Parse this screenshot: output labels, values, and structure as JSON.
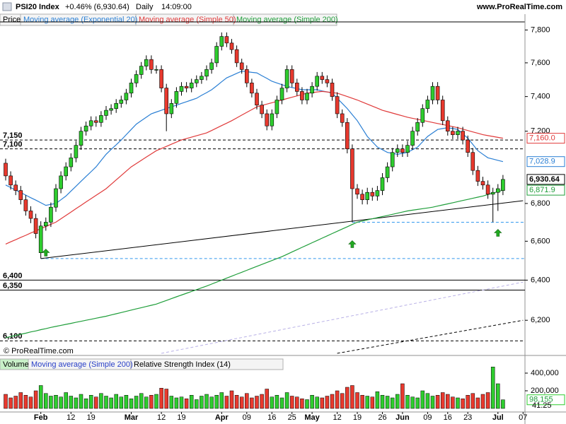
{
  "header": {
    "symbol": "PSI20 Index",
    "change": "+0.46% (6,930.64)",
    "period": "Daily",
    "time": "14:09:00",
    "site": "www.ProRealTime.com"
  },
  "chart_data": [
    {
      "type": "candlestick",
      "legend_title": "Price",
      "copyright": "© ProRealTime.com",
      "categories": [
        null,
        null,
        null,
        null,
        null,
        null,
        null,
        "Feb",
        null,
        null,
        null,
        null,
        null,
        "12",
        null,
        null,
        null,
        "19",
        null,
        null,
        null,
        null,
        null,
        null,
        null,
        "Mar",
        null,
        null,
        null,
        null,
        null,
        "12",
        null,
        null,
        null,
        "19",
        null,
        null,
        null,
        null,
        null,
        null,
        null,
        "Apr",
        null,
        null,
        null,
        null,
        "09",
        null,
        null,
        null,
        null,
        "16",
        null,
        null,
        null,
        "25",
        null,
        null,
        null,
        "May",
        null,
        null,
        null,
        null,
        "12",
        null,
        null,
        null,
        "19",
        null,
        null,
        null,
        null,
        "26",
        null,
        null,
        null,
        "Jun",
        null,
        null,
        null,
        null,
        "09",
        null,
        null,
        null,
        "16",
        null,
        null,
        null,
        "23",
        null,
        null,
        null,
        null,
        null,
        "Jul",
        null,
        null,
        null,
        null,
        "07"
      ],
      "open": [
        7020,
        6950,
        6900,
        6870,
        6820,
        6760,
        6720,
        6540,
        6680,
        6700,
        6780,
        6880,
        6950,
        7000,
        7050,
        7120,
        7200,
        7230,
        7260,
        7250,
        7290,
        7320,
        7330,
        7360,
        7380,
        7420,
        7480,
        7530,
        7580,
        7620,
        7560,
        7560,
        7450,
        7300,
        7360,
        7430,
        7460,
        7450,
        7480,
        7500,
        7520,
        7560,
        7600,
        7700,
        7760,
        7720,
        7680,
        7600,
        7560,
        7480,
        7420,
        7350,
        7300,
        7230,
        7300,
        7380,
        7450,
        7560,
        7480,
        7430,
        7380,
        7420,
        7460,
        7520,
        7500,
        7480,
        7400,
        7300,
        7250,
        7100,
        6880,
        6850,
        6820,
        6860,
        6840,
        6870,
        6940,
        7000,
        7080,
        7100,
        7080,
        7120,
        7200,
        7250,
        7330,
        7380,
        7460,
        7380,
        7260,
        7200,
        7180,
        7200,
        7150,
        7080,
        6980,
        6920,
        6900,
        6850,
        6860,
        6870,
        null,
        null,
        null,
        null
      ],
      "high": [
        7045,
        6975,
        6925,
        6895,
        6845,
        6785,
        6745,
        6705,
        6725,
        6805,
        6905,
        6975,
        7025,
        7075,
        7145,
        7225,
        7255,
        7285,
        7285,
        7315,
        7345,
        7355,
        7385,
        7405,
        7445,
        7505,
        7555,
        7605,
        7645,
        7645,
        7585,
        7585,
        7475,
        7385,
        7455,
        7485,
        7485,
        7505,
        7525,
        7545,
        7585,
        7625,
        7725,
        7785,
        7785,
        7745,
        7705,
        7625,
        7585,
        7505,
        7445,
        7375,
        7325,
        7325,
        7405,
        7475,
        7585,
        7585,
        7505,
        7455,
        7445,
        7485,
        7545,
        7545,
        7525,
        7505,
        7425,
        7325,
        7275,
        7125,
        6905,
        6875,
        6885,
        6885,
        6895,
        6965,
        7025,
        7105,
        7125,
        7125,
        7145,
        7225,
        7275,
        7355,
        7405,
        7485,
        7485,
        7405,
        7285,
        7225,
        7225,
        7225,
        7175,
        7105,
        7005,
        6945,
        6925,
        6885,
        6905,
        6955,
        null,
        null,
        null,
        null
      ],
      "low": [
        6925,
        6875,
        6845,
        6795,
        6735,
        6695,
        6615,
        6510,
        6655,
        6675,
        6755,
        6855,
        6925,
        6975,
        7025,
        7095,
        7175,
        7205,
        7225,
        7225,
        7265,
        7295,
        7305,
        7335,
        7355,
        7395,
        7455,
        7505,
        7555,
        7535,
        7535,
        7425,
        7200,
        7275,
        7335,
        7405,
        7425,
        7425,
        7455,
        7475,
        7495,
        7535,
        7575,
        7675,
        7695,
        7655,
        7575,
        7535,
        7455,
        7395,
        7325,
        7275,
        7205,
        7205,
        7275,
        7355,
        7425,
        7455,
        7405,
        7355,
        7355,
        7395,
        7435,
        7475,
        7455,
        7375,
        7275,
        7225,
        7075,
        6700,
        6825,
        6795,
        6795,
        6815,
        6815,
        6845,
        6915,
        6975,
        7055,
        7055,
        7055,
        7095,
        7175,
        7225,
        7305,
        7355,
        7355,
        7235,
        7175,
        7155,
        7155,
        7125,
        7055,
        6955,
        6895,
        6875,
        6825,
        6700,
        6760,
        6845,
        null,
        null,
        null,
        null
      ],
      "close": [
        6950,
        6900,
        6870,
        6820,
        6760,
        6720,
        6640,
        6680,
        6700,
        6780,
        6880,
        6950,
        7000,
        7050,
        7120,
        7200,
        7230,
        7260,
        7250,
        7290,
        7320,
        7330,
        7360,
        7380,
        7420,
        7480,
        7530,
        7580,
        7620,
        7560,
        7560,
        7450,
        7300,
        7360,
        7430,
        7460,
        7450,
        7480,
        7500,
        7520,
        7560,
        7600,
        7700,
        7760,
        7720,
        7680,
        7600,
        7560,
        7480,
        7420,
        7350,
        7300,
        7230,
        7300,
        7380,
        7450,
        7560,
        7480,
        7430,
        7380,
        7420,
        7460,
        7520,
        7500,
        7480,
        7400,
        7300,
        7250,
        7100,
        6880,
        6850,
        6820,
        6860,
        6840,
        6870,
        6940,
        7000,
        7080,
        7100,
        7080,
        7120,
        7200,
        7250,
        7330,
        7380,
        7460,
        7380,
        7260,
        7200,
        7180,
        7200,
        7150,
        7080,
        6980,
        6920,
        6900,
        6850,
        6860,
        6880,
        6930.64,
        null,
        null,
        null,
        null
      ],
      "close_label": "6,930.64",
      "up_color": "#2ecc2e",
      "down_color": "#e8392e",
      "series": [
        {
          "name": "Moving average (Exponential 20)",
          "color": "#2a7fd4",
          "last_label": "7,028.9",
          "values": [
            6900,
            6886,
            6872,
            6859,
            6845,
            6831,
            6818,
            6804,
            6790,
            6795,
            6800,
            6820,
            6840,
            6867,
            6893,
            6920,
            6947,
            6973,
            7000,
            7035,
            7070,
            7097,
            7123,
            7150,
            7180,
            7210,
            7240,
            7260,
            7280,
            7300,
            7310,
            7320,
            7330,
            7340,
            7350,
            7360,
            7370,
            7380,
            7390,
            7407,
            7423,
            7440,
            7463,
            7487,
            7510,
            7523,
            7537,
            7550,
            7547,
            7543,
            7540,
            7523,
            7507,
            7490,
            7480,
            7470,
            7460,
            7453,
            7447,
            7440,
            7440,
            7440,
            7440,
            7433,
            7427,
            7420,
            7390,
            7360,
            7330,
            7295,
            7260,
            7215,
            7170,
            7140,
            7110,
            7095,
            7080,
            7075,
            7070,
            7075,
            7080,
            7095,
            7110,
            7140,
            7170,
            7190,
            7210,
            7215,
            7220,
            7215,
            7210,
            7185,
            7160,
            7125,
            7090,
            7070,
            7050,
            7043,
            7036,
            7028.9,
            null,
            null,
            null,
            null
          ]
        },
        {
          "name": "Moving average (Simple 50)",
          "color": "#e03a3a",
          "last_label": "7,160.0",
          "values": [
            6585,
            6597,
            6608,
            6620,
            6631,
            6643,
            6654,
            6666,
            6677,
            6689,
            6700,
            6718,
            6736,
            6754,
            6772,
            6790,
            6808,
            6826,
            6844,
            6862,
            6880,
            6904,
            6928,
            6952,
            6976,
            7000,
            7018,
            7036,
            7054,
            7072,
            7090,
            7102,
            7114,
            7126,
            7138,
            7150,
            7158,
            7166,
            7174,
            7182,
            7190,
            7204,
            7218,
            7232,
            7246,
            7260,
            7276,
            7292,
            7308,
            7324,
            7340,
            7348,
            7356,
            7364,
            7372,
            7380,
            7388,
            7396,
            7404,
            7412,
            7420,
            7423,
            7427,
            7430,
            7427,
            7423,
            7420,
            7410,
            7400,
            7390,
            7380,
            7368,
            7356,
            7344,
            7332,
            7320,
            7312,
            7304,
            7296,
            7288,
            7280,
            7274,
            7268,
            7262,
            7256,
            7250,
            7244,
            7238,
            7232,
            7226,
            7220,
            7212,
            7204,
            7196,
            7188,
            7180,
            7175,
            7170,
            7165,
            7160,
            null,
            null,
            null,
            null
          ]
        },
        {
          "name": "Moving average (Simple 200)",
          "color": "#1f9e3a",
          "last_label": "6,871.9",
          "values": [
            6115,
            6121,
            6126,
            6132,
            6137,
            6143,
            6148,
            6154,
            6159,
            6165,
            6170,
            6175,
            6180,
            6185,
            6190,
            6195,
            6200,
            6205,
            6210,
            6215,
            6220,
            6226,
            6232,
            6238,
            6244,
            6250,
            6256,
            6262,
            6268,
            6274,
            6280,
            6289,
            6298,
            6307,
            6316,
            6325,
            6334,
            6343,
            6352,
            6361,
            6370,
            6380,
            6390,
            6400,
            6410,
            6420,
            6430,
            6440,
            6450,
            6460,
            6470,
            6480,
            6490,
            6500,
            6510,
            6520,
            6532,
            6544,
            6556,
            6568,
            6580,
            6592,
            6604,
            6616,
            6628,
            6640,
            6652,
            6664,
            6676,
            6688,
            6700,
            6706,
            6712,
            6718,
            6724,
            6730,
            6736,
            6742,
            6748,
            6754,
            6760,
            6764,
            6768,
            6772,
            6776,
            6780,
            6786,
            6792,
            6798,
            6804,
            6810,
            6816,
            6822,
            6828,
            6834,
            6840,
            6848,
            6856,
            6864,
            6871.9,
            null,
            null,
            null,
            null
          ]
        }
      ],
      "ylim": [
        6040,
        7850
      ],
      "log_scale": true,
      "yticks": [
        {
          "value": 6200,
          "label": "6,200"
        },
        {
          "value": 6400,
          "label": "6,400"
        },
        {
          "value": 6600,
          "label": "6,600"
        },
        {
          "value": 6800,
          "label": "6,800"
        },
        {
          "value": 7200,
          "label": "7,200"
        },
        {
          "value": 7400,
          "label": "7,400"
        },
        {
          "value": 7600,
          "label": "7,600"
        },
        {
          "value": 7800,
          "label": "7,800"
        }
      ],
      "hlines": [
        {
          "value": 7150,
          "label": "7,150",
          "style": "dashed",
          "color": "#000000"
        },
        {
          "value": 7100,
          "label": "7,100",
          "style": "dashed",
          "color": "#000000"
        },
        {
          "value": 6400,
          "label": "6,400",
          "style": "solid",
          "color": "#000000"
        },
        {
          "value": 6350,
          "label": "6,350",
          "style": "solid",
          "color": "#000000"
        },
        {
          "value": 6100,
          "label": "6,100",
          "style": "dashed",
          "color": "#000000"
        },
        {
          "value": 6700,
          "from": 69,
          "style": "dashed",
          "color": "#3399ee"
        },
        {
          "value": 6510,
          "from": 7,
          "style": "dashed",
          "color": "#3399ee"
        }
      ],
      "segments": [
        {
          "x": [
            7,
            103
          ],
          "y": [
            6510,
            6815
          ],
          "style": "solid",
          "color": "#000000"
        },
        {
          "x": [
            31,
            103
          ],
          "y": [
            6040,
            6390
          ],
          "style": "dashed",
          "color": "#b8b0e6"
        },
        {
          "x": [
            66,
            103
          ],
          "y": [
            6040,
            6200
          ],
          "style": "dashed",
          "color": "#000000"
        }
      ],
      "arrows": [
        8,
        69,
        98
      ],
      "arrow_color": "#22aa22"
    },
    {
      "type": "volume",
      "legend": [
        "Volume",
        "Moving average (Simple 200)",
        "Relative Strength Index (14)"
      ],
      "legend_colors": [
        "#000000",
        "#2a40c8",
        "#000000"
      ],
      "values": [
        160000,
        120000,
        140000,
        180000,
        150000,
        130000,
        200000,
        260000,
        170000,
        140000,
        150000,
        130000,
        180000,
        140000,
        120000,
        160000,
        110000,
        150000,
        130000,
        170000,
        140000,
        120000,
        160000,
        130000,
        150000,
        110000,
        140000,
        170000,
        130000,
        150000,
        160000,
        230000,
        220000,
        140000,
        120000,
        130000,
        110000,
        150000,
        100000,
        140000,
        160000,
        130000,
        150000,
        180000,
        140000,
        200000,
        150000,
        130000,
        170000,
        120000,
        140000,
        160000,
        220000,
        130000,
        150000,
        120000,
        180000,
        140000,
        130000,
        110000,
        100000,
        150000,
        130000,
        120000,
        140000,
        160000,
        200000,
        170000,
        240000,
        260000,
        180000,
        150000,
        140000,
        130000,
        190000,
        150000,
        140000,
        120000,
        160000,
        280000,
        150000,
        130000,
        120000,
        200000,
        170000,
        140000,
        150000,
        180000,
        160000,
        130000,
        120000,
        110000,
        150000,
        170000,
        120000,
        160000,
        180000,
        470000,
        280000,
        98155,
        null,
        null,
        null,
        null
      ],
      "last_label": "98,155",
      "rsi_label": "41.25",
      "ylim": [
        0,
        560000
      ],
      "yticks": [
        {
          "value": 200000,
          "label": "200,000"
        },
        {
          "value": 400000,
          "label": "400,000"
        }
      ]
    }
  ]
}
